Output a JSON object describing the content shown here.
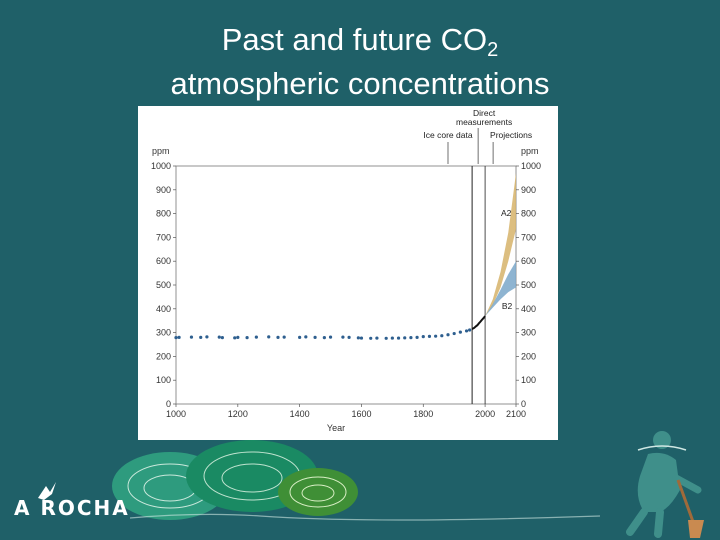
{
  "slide": {
    "title_main": "Past and future CO",
    "title_sub": "2",
    "title_line2": "atmospheric concentrations",
    "logo_text": "A ROCHA"
  },
  "colors": {
    "background": "#1f6068",
    "ice_core_points": "#2e5f8f",
    "direct_line": "#111111",
    "a2_band": "#d6b36a",
    "b2_band": "#7aa7c9"
  },
  "chart_data": {
    "type": "scatter",
    "xlabel": "Year",
    "ylabel_left": "ppm",
    "ylabel_right": "ppm",
    "xlim": [
      1000,
      2100
    ],
    "ylim": [
      0,
      1000
    ],
    "x_ticks": [
      1000,
      1200,
      1400,
      1600,
      1800,
      2000,
      2100
    ],
    "y_ticks": [
      0,
      100,
      200,
      300,
      400,
      500,
      600,
      700,
      800,
      900,
      1000
    ],
    "annotations": {
      "ice_core": "Ice core data",
      "direct_1": "Direct",
      "direct_2": "measurements",
      "projections": "Projections",
      "a2": "A2",
      "b2": "B2"
    },
    "ice_core_series": {
      "x": [
        1000,
        1010,
        1050,
        1080,
        1100,
        1140,
        1150,
        1190,
        1200,
        1230,
        1260,
        1300,
        1330,
        1350,
        1400,
        1420,
        1450,
        1480,
        1500,
        1540,
        1560,
        1590,
        1600,
        1630,
        1650,
        1680,
        1700,
        1720,
        1740,
        1760,
        1780,
        1800,
        1820,
        1840,
        1860,
        1880,
        1900,
        1920,
        1940,
        1950
      ],
      "y": [
        279,
        280,
        281,
        280,
        282,
        281,
        279,
        278,
        280,
        279,
        281,
        282,
        280,
        281,
        280,
        282,
        280,
        279,
        281,
        281,
        280,
        278,
        277,
        276,
        277,
        276,
        277,
        277,
        278,
        279,
        280,
        283,
        284,
        285,
        287,
        291,
        296,
        302,
        307,
        311
      ]
    },
    "direct_series": {
      "x": [
        1958,
        1965,
        1970,
        1975,
        1980,
        1985,
        1990,
        1995,
        2000
      ],
      "y": [
        315,
        320,
        326,
        331,
        339,
        346,
        354,
        361,
        369
      ]
    },
    "a2_band": {
      "x": [
        2000,
        2025,
        2050,
        2075,
        2100
      ],
      "lower": [
        369,
        415,
        490,
        600,
        735
      ],
      "upper": [
        369,
        440,
        555,
        720,
        970
      ]
    },
    "b2_band": {
      "x": [
        2000,
        2025,
        2050,
        2075,
        2100
      ],
      "lower": [
        369,
        405,
        440,
        470,
        490
      ],
      "upper": [
        369,
        420,
        480,
        545,
        600
      ]
    },
    "direct_measurements_start": 1958,
    "projections_start": 2000,
    "grid": false
  }
}
